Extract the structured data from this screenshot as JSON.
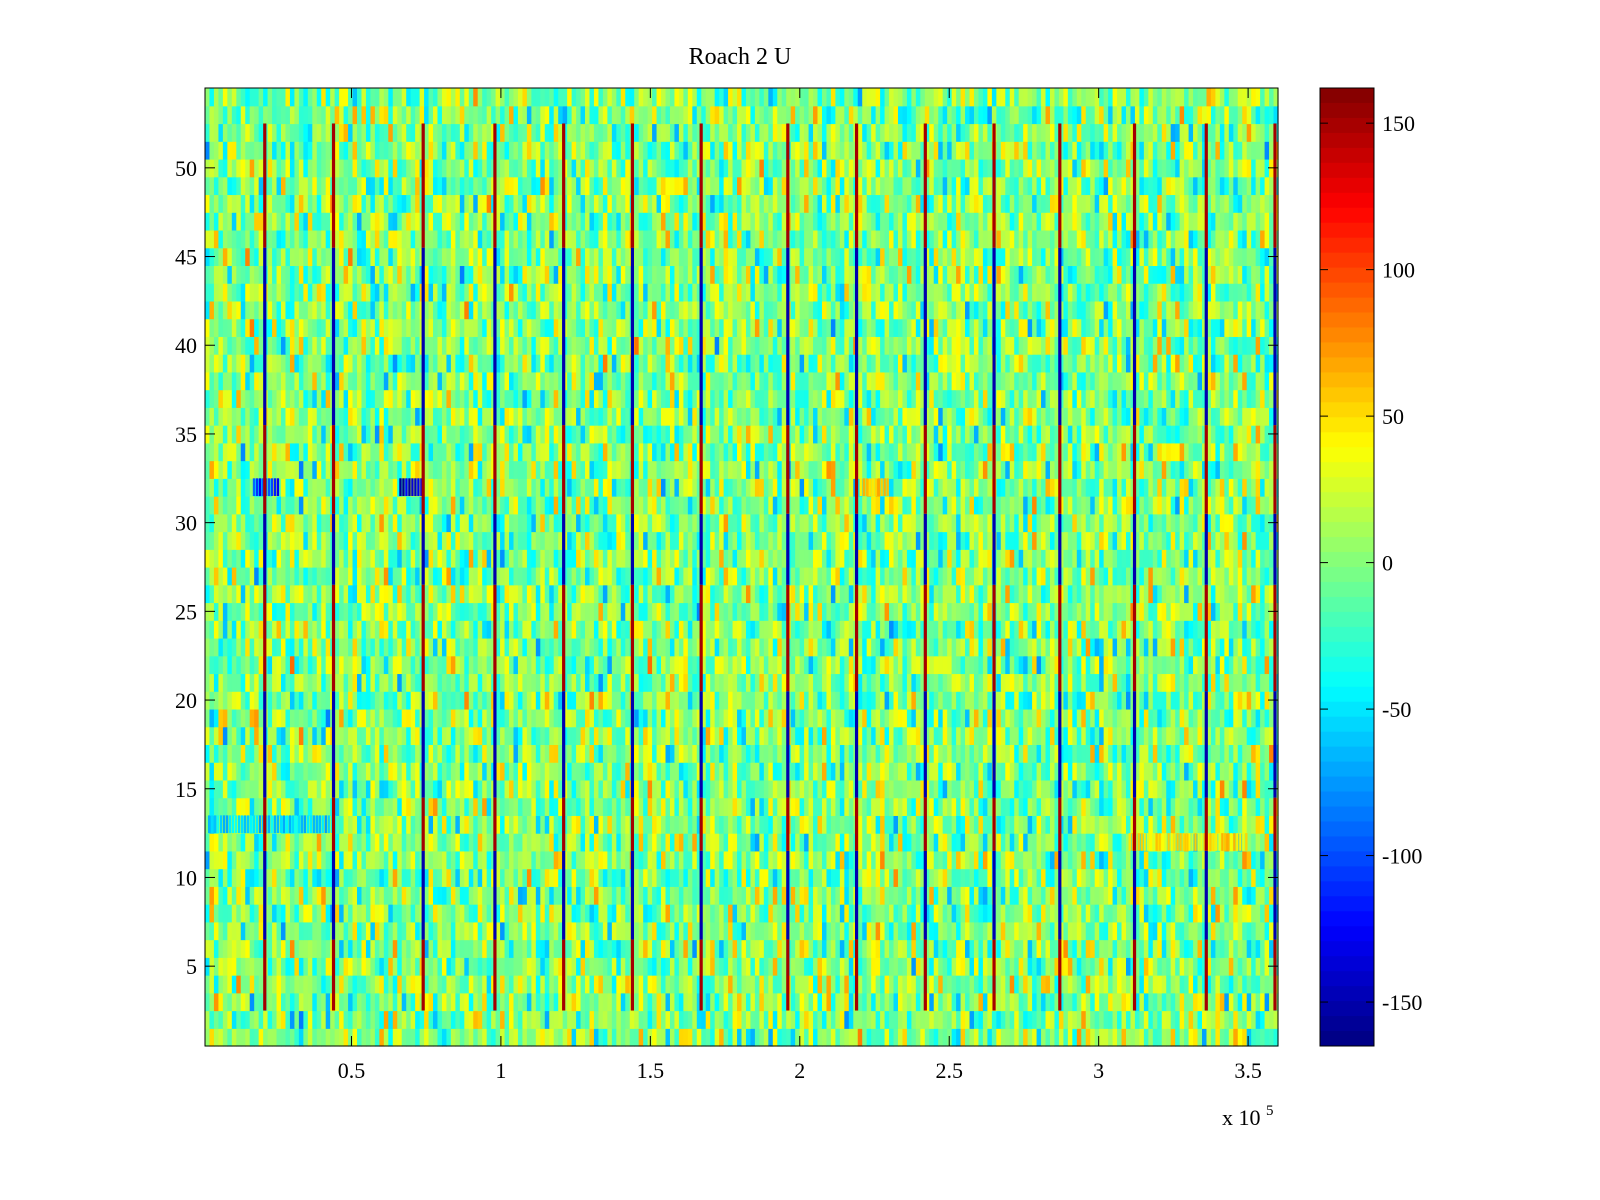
{
  "chart_data": {
    "type": "heatmap",
    "title": "Roach 2 U",
    "xlabel": "",
    "ylabel": "",
    "x_multiplier_label": "x 10",
    "x_multiplier_exponent": "5",
    "xlim": [
      0.01,
      3.6
    ],
    "ylim": [
      0.5,
      54.5
    ],
    "x_ticks": [
      {
        "value": 0.5,
        "label": "0.5"
      },
      {
        "value": 1,
        "label": "1"
      },
      {
        "value": 1.5,
        "label": "1.5"
      },
      {
        "value": 2,
        "label": "2"
      },
      {
        "value": 2.5,
        "label": "2.5"
      },
      {
        "value": 3,
        "label": "3"
      },
      {
        "value": 3.5,
        "label": "3.5"
      }
    ],
    "y_ticks": [
      {
        "value": 5,
        "label": "5"
      },
      {
        "value": 10,
        "label": "10"
      },
      {
        "value": 15,
        "label": "15"
      },
      {
        "value": 20,
        "label": "20"
      },
      {
        "value": 25,
        "label": "25"
      },
      {
        "value": 30,
        "label": "30"
      },
      {
        "value": 35,
        "label": "35"
      },
      {
        "value": 40,
        "label": "40"
      },
      {
        "value": 45,
        "label": "45"
      },
      {
        "value": 50,
        "label": "50"
      }
    ],
    "colorbar": {
      "colormap": "jet",
      "clim": [
        -165,
        162
      ],
      "ticks": [
        {
          "value": 150,
          "label": "150"
        },
        {
          "value": 100,
          "label": "100"
        },
        {
          "value": 50,
          "label": "50"
        },
        {
          "value": 0,
          "label": "0"
        },
        {
          "value": -50,
          "label": "-50"
        },
        {
          "value": -100,
          "label": "-100"
        },
        {
          "value": -150,
          "label": "-150"
        }
      ]
    },
    "rows": 54,
    "background_range": [
      -45,
      45
    ],
    "spike_columns_x": [
      0.21,
      0.44,
      0.74,
      0.98,
      1.21,
      1.44,
      1.67,
      1.96,
      2.19,
      2.42,
      2.65,
      2.87,
      3.12,
      3.36,
      3.59
    ],
    "spike_row_pattern": [
      {
        "rows": [
          3,
          6
        ],
        "value": 150
      },
      {
        "rows": [
          7,
          11
        ],
        "value": -150
      },
      {
        "rows": [
          12,
          14
        ],
        "value": 150
      },
      {
        "rows": [
          15,
          20
        ],
        "value": -150
      },
      {
        "rows": [
          21,
          26
        ],
        "value": 150
      },
      {
        "rows": [
          27,
          30
        ],
        "value": -150
      },
      {
        "rows": [
          31,
          35
        ],
        "value": 150
      },
      {
        "rows": [
          36,
          45
        ],
        "value": -150
      },
      {
        "rows": [
          46,
          52
        ],
        "value": 150
      }
    ],
    "anomalies": [
      {
        "row": 32,
        "x_range": [
          0.17,
          0.26
        ],
        "value": -110
      },
      {
        "row": 32,
        "x_range": [
          0.66,
          0.74
        ],
        "value": -140
      },
      {
        "row": 13,
        "x_range": [
          0.02,
          0.45
        ],
        "value": -55
      },
      {
        "row": 32,
        "x_range": [
          2.2,
          2.3
        ],
        "value": 55
      },
      {
        "row": 12,
        "x_range": [
          3.1,
          3.5
        ],
        "value": 45
      }
    ]
  }
}
